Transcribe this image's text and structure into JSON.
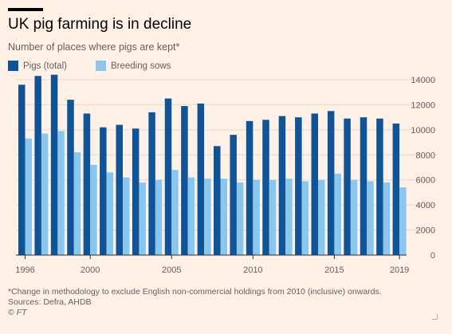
{
  "title": "UK pig farming is in decline",
  "subtitle": "Number of places where pigs are kept*",
  "footnote": "*Change in methodology to exclude English non-commercial holdings from 2010 (inclusive) onwards.",
  "source": "Sources: Defra, AHDB",
  "credit": "© FT",
  "colors": {
    "background": "#fff1e5",
    "pigs_total": "#0f5499",
    "breeding_sows": "#89c7ec",
    "grid": "#e6d9ce",
    "axis": "#33302e",
    "text": "#66605c"
  },
  "chart_data": {
    "type": "bar",
    "x": [
      1996,
      1997,
      1998,
      1999,
      2000,
      2001,
      2002,
      2003,
      2004,
      2005,
      2006,
      2007,
      2008,
      2009,
      2010,
      2011,
      2012,
      2013,
      2014,
      2015,
      2016,
      2017,
      2018,
      2019
    ],
    "x_tick_labels": [
      "1996",
      "2000",
      "2005",
      "2010",
      "2015",
      "2019"
    ],
    "x_tick_values": [
      1996,
      2000,
      2005,
      2010,
      2015,
      2019
    ],
    "series": [
      {
        "name": "Pigs (total)",
        "values": [
          13600,
          14300,
          14400,
          12400,
          11300,
          10200,
          10400,
          10100,
          11400,
          12500,
          11900,
          12100,
          8700,
          9600,
          10700,
          10800,
          11100,
          11000,
          11300,
          11500,
          10900,
          11000,
          10900,
          10500
        ]
      },
      {
        "name": "Breeding sows",
        "values": [
          9300,
          9700,
          9900,
          8200,
          7200,
          6600,
          6200,
          5800,
          6000,
          6800,
          6200,
          6100,
          6100,
          5800,
          6000,
          6000,
          6100,
          5900,
          6000,
          6500,
          6000,
          5900,
          5800,
          5400
        ]
      }
    ],
    "y_ticks": [
      0,
      2000,
      4000,
      6000,
      8000,
      10000,
      12000,
      14000
    ],
    "y_tick_labels": [
      "0",
      "2000",
      "4000",
      "6000",
      "8000",
      "10000",
      "12000",
      "14000"
    ],
    "ylim": [
      0,
      14000
    ],
    "grid": true,
    "legend_position": "top-left",
    "y_axis_side": "right"
  }
}
